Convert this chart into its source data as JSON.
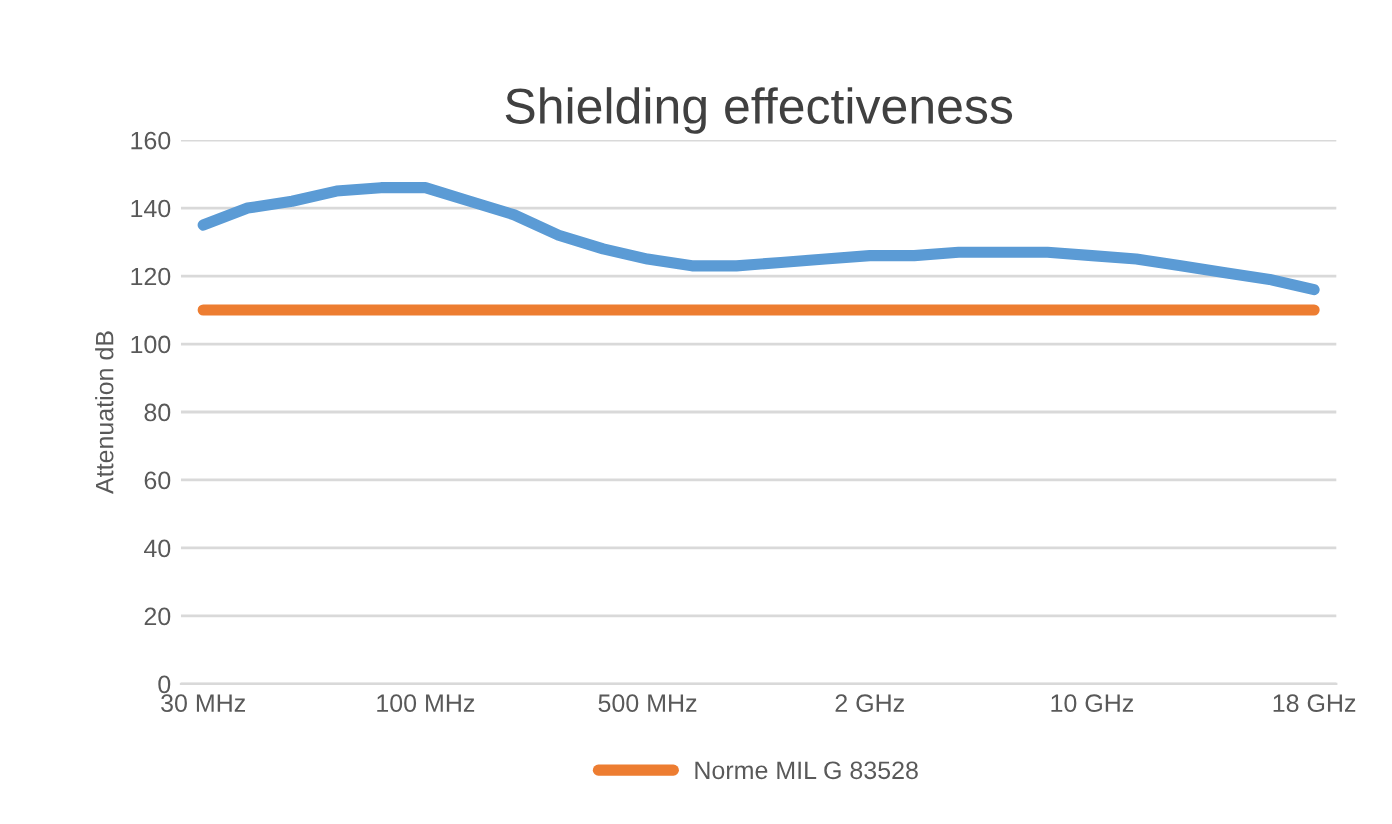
{
  "chart_data": {
    "type": "line",
    "title": "Shielding effectiveness",
    "ylabel": "Attenuation dB",
    "categories": [
      "30 MHz",
      null,
      null,
      null,
      null,
      "100 MHz",
      null,
      null,
      null,
      null,
      "500 MHz",
      null,
      null,
      null,
      null,
      "2 GHz",
      null,
      null,
      null,
      null,
      "10 GHz",
      null,
      null,
      null,
      null,
      "18 GHz"
    ],
    "series": [
      {
        "color": "#5b9bd5",
        "values": [
          135,
          140,
          142,
          145,
          146,
          146,
          142,
          138,
          132,
          128,
          125,
          123,
          123,
          124,
          125,
          126,
          126,
          127,
          127,
          127,
          126,
          125,
          123,
          121,
          119,
          116
        ]
      },
      {
        "name": "Norme MIL G 83528",
        "color": "#ed7d31",
        "values": [
          110,
          110,
          110,
          110,
          110,
          110,
          110,
          110,
          110,
          110,
          110,
          110,
          110,
          110,
          110,
          110,
          110,
          110,
          110,
          110,
          110,
          110,
          110,
          110,
          110,
          110
        ]
      }
    ],
    "ylim": [
      0,
      160
    ],
    "yticks": [
      0,
      20,
      40,
      60,
      80,
      100,
      120,
      140,
      160
    ],
    "grid": "y",
    "legend": "bottom",
    "marker": "none",
    "line_style": "solid"
  }
}
